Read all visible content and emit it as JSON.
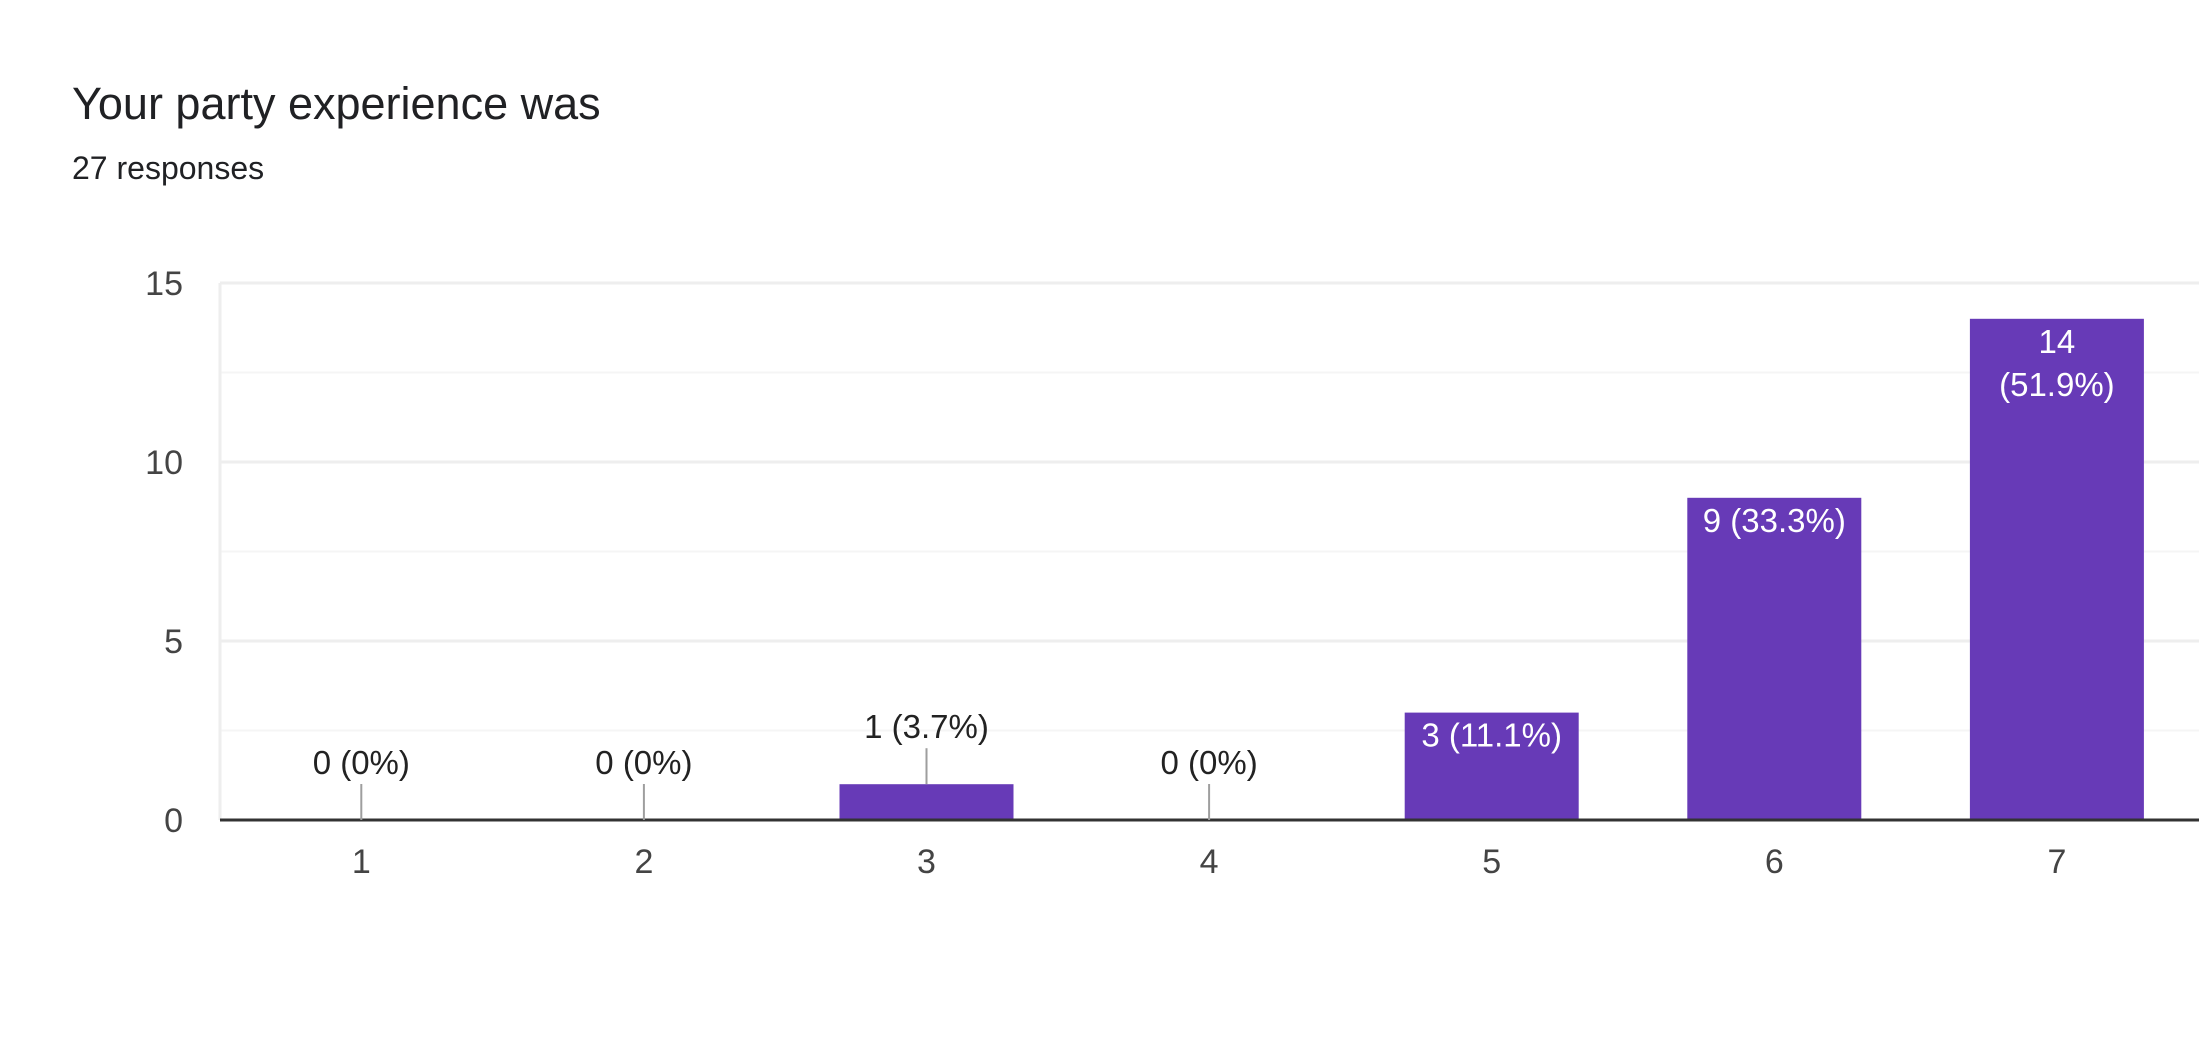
{
  "header": {
    "title": "Your party experience was",
    "responses": "27 responses"
  },
  "colors": {
    "bar": "#673ab7",
    "gridline": "#eeeeee",
    "minor_gridline": "#f5f5f5",
    "axis": "#333333",
    "leader_line": "#9e9e9e",
    "label_inside": "#ffffff",
    "label_outside": "#222222"
  },
  "chart_data": {
    "type": "bar",
    "title": "Your party experience was",
    "subtitle": "27 responses",
    "categories": [
      "1",
      "2",
      "3",
      "4",
      "5",
      "6",
      "7"
    ],
    "values": [
      0,
      0,
      1,
      0,
      3,
      9,
      14
    ],
    "data_labels": [
      [
        "0 (0%)"
      ],
      [
        "0 (0%)"
      ],
      [
        "1 (3.7%)"
      ],
      [
        "0 (0%)"
      ],
      [
        "3 (11.1%)"
      ],
      [
        "9 (33.3%)"
      ],
      [
        "14",
        "(51.9%)"
      ]
    ],
    "y_ticks": [
      0,
      5,
      10,
      15
    ],
    "ylim": [
      0,
      15
    ],
    "xlabel": "",
    "ylabel": "",
    "grid": true,
    "legend": "none"
  }
}
